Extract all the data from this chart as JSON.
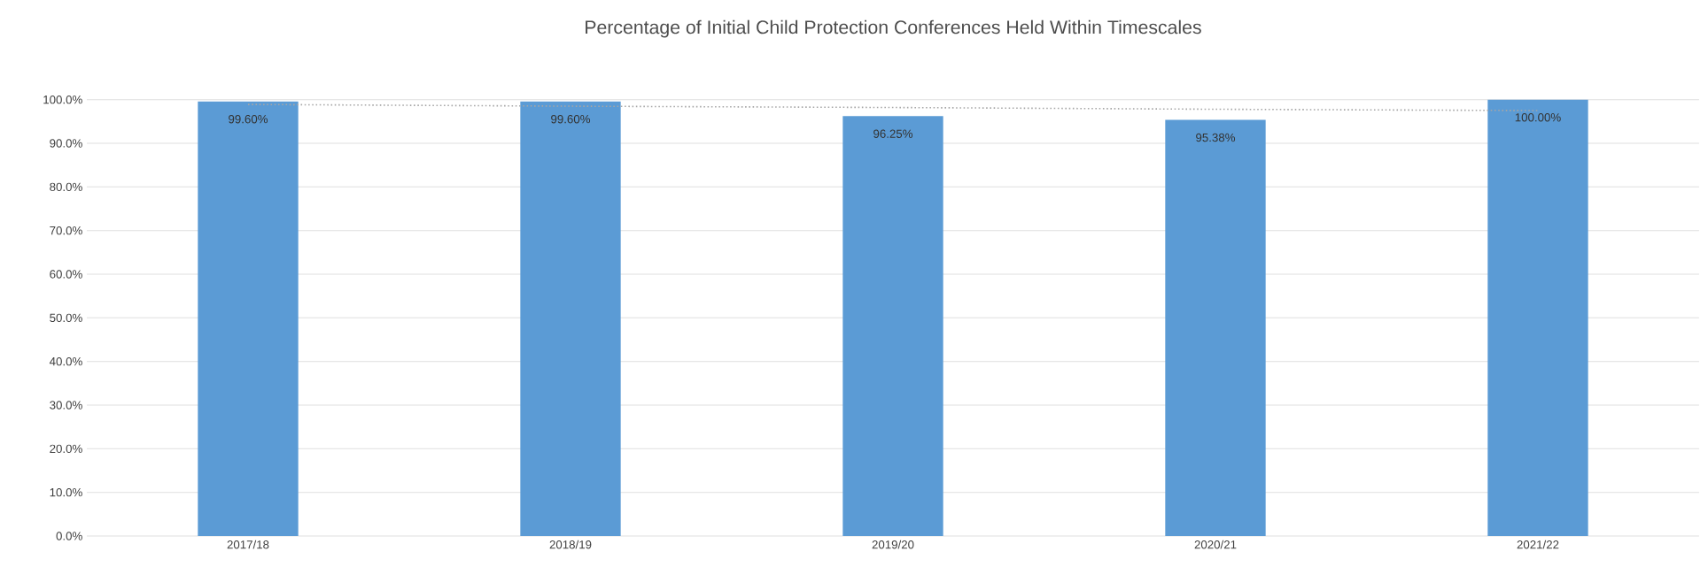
{
  "chart_data": {
    "type": "bar",
    "title": "Percentage of Initial Child Protection Conferences Held Within Timescales",
    "categories": [
      "2017/18",
      "2018/19",
      "2019/20",
      "2020/21",
      "2021/22"
    ],
    "series": [
      {
        "color": "#5b9bd5",
        "values": [
          99.6,
          99.6,
          96.25,
          95.38,
          100.0
        ],
        "value_labels": [
          "99.60%",
          "99.60%",
          "96.25%",
          "95.38%",
          "100.00%"
        ]
      },
      {
        "type": "line",
        "color": "#a6a6a6",
        "line_style": "dotted",
        "marker": "none",
        "values": [
          98.9,
          98.5,
          98.2,
          97.8,
          97.5
        ]
      }
    ],
    "ylim": [
      0,
      100
    ],
    "yticks": [
      {
        "value": 0,
        "label": "0.0%"
      },
      {
        "value": 10,
        "label": "10.0%"
      },
      {
        "value": 20,
        "label": "20.0%"
      },
      {
        "value": 30,
        "label": "30.0%"
      },
      {
        "value": 40,
        "label": "40.0%"
      },
      {
        "value": 50,
        "label": "50.0%"
      },
      {
        "value": 60,
        "label": "60.0%"
      },
      {
        "value": 70,
        "label": "70.0%"
      },
      {
        "value": 80,
        "label": "80.0%"
      },
      {
        "value": 90,
        "label": "90.0%"
      },
      {
        "value": 100,
        "label": "100.0%"
      }
    ],
    "grid": "y"
  }
}
